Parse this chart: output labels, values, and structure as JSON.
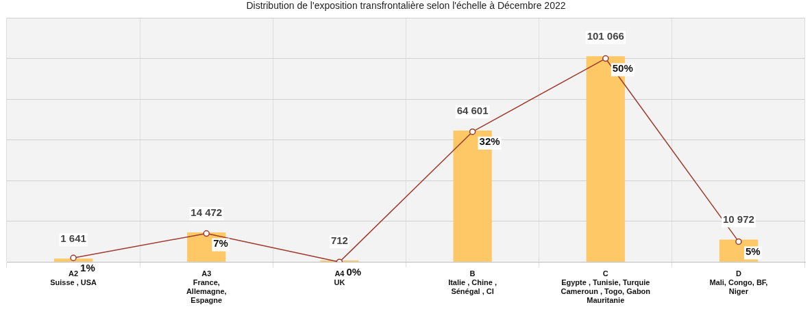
{
  "chart_data": {
    "type": "bar",
    "title": "Distribution de l'exposition transfrontalière selon l'échelle à Décembre 2022",
    "categories": [
      "A2\nSuisse , USA",
      "A3\nFrance,\nAllemagne,\nEspagne",
      "A4\nUK",
      "B\nItalie , Chine ,\nSénégal , CI",
      "C\nEgypte , Tunisie, Turquie\nCameroun , Togo, Gabon\nMauritanie",
      "D\nMali, Congo, BF,\nNiger"
    ],
    "series": [
      {
        "color": "#fdc865",
        "values": [
          1641,
          14472,
          712,
          64601,
          101066,
          10972
        ],
        "value_labels": [
          "1 641",
          "14 472",
          "712",
          "64 601",
          "101 066",
          "10 972"
        ]
      },
      {
        "type": "line",
        "axis": "y2",
        "color": "#9e3a2e",
        "values": [
          1,
          7,
          0,
          32,
          50,
          5
        ],
        "value_labels": [
          "1%",
          "7%",
          "0%",
          "32%",
          "50%",
          "5%"
        ]
      }
    ],
    "ylim": [
      0,
      120000
    ],
    "yticks": [
      0,
      20000,
      40000,
      60000,
      80000,
      100000,
      120000
    ],
    "y2lim": [
      0,
      60
    ],
    "grid": true,
    "tick_labels": "x",
    "marker": "circle",
    "line_style": "solid",
    "legend": false
  }
}
